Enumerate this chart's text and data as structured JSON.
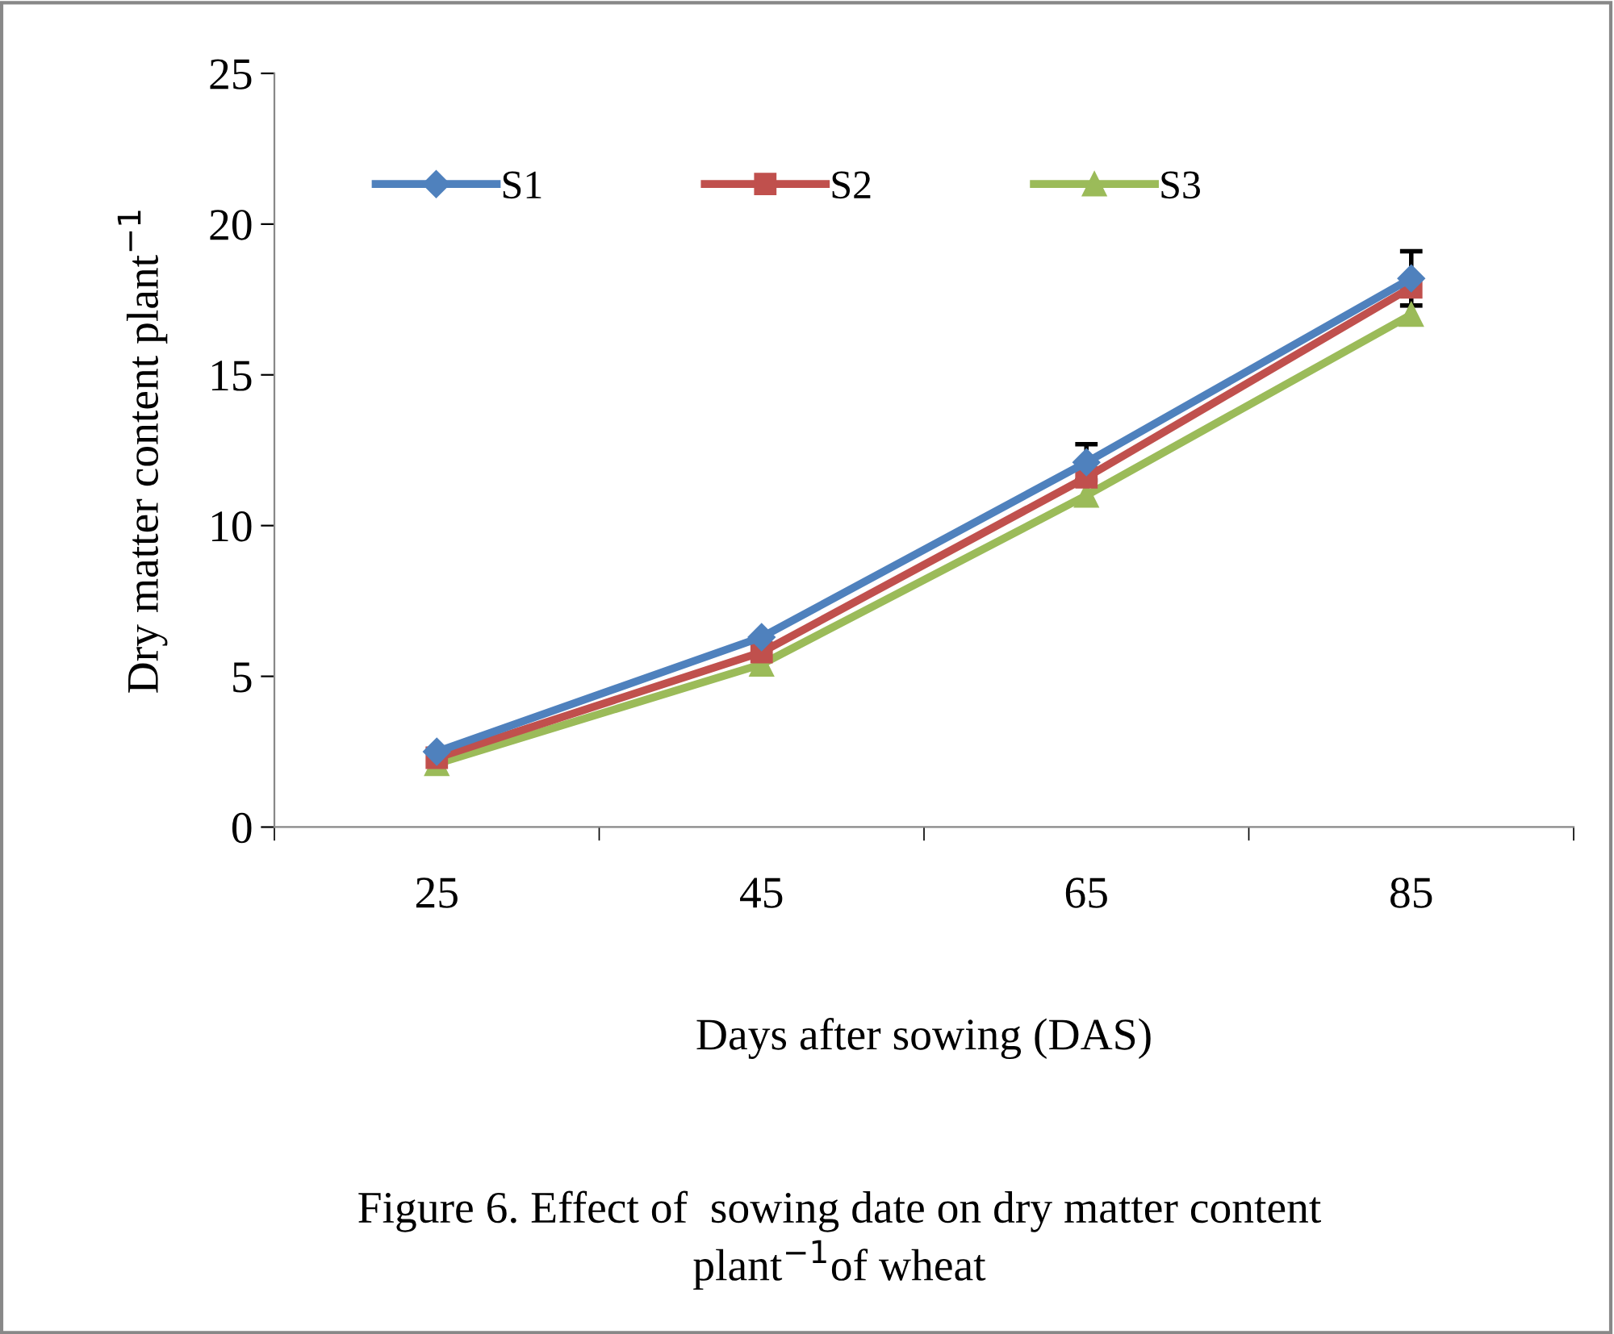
{
  "chart_data": {
    "type": "line",
    "xlabel": "Days after sowing (DAS)",
    "ylabel": "Dry matter content plant$^{−1}$",
    "categories": [
      "25",
      "45",
      "65",
      "85"
    ],
    "series": [
      {
        "name": "S1",
        "color": "#4f81bd",
        "marker": "diamond",
        "values": [
          2.5,
          6.3,
          12.1,
          18.2
        ],
        "errors": [
          null,
          null,
          0.6,
          0.9
        ]
      },
      {
        "name": "S2",
        "color": "#c0504d",
        "marker": "square",
        "values": [
          2.3,
          5.8,
          11.6,
          17.9
        ]
      },
      {
        "name": "S3",
        "color": "#9bbb59",
        "marker": "triangle",
        "values": [
          2.1,
          5.4,
          11.0,
          17.0
        ]
      }
    ],
    "ylim": [
      0,
      25
    ],
    "yticks": [
      0,
      5,
      10,
      15,
      20,
      25
    ],
    "grid": false,
    "legend": "top left",
    "line_style": "solid",
    "annotations": [
      "Figure 6. Effect of  sowing date on dry matter content\nplant$^{−1}$of wheat"
    ]
  }
}
